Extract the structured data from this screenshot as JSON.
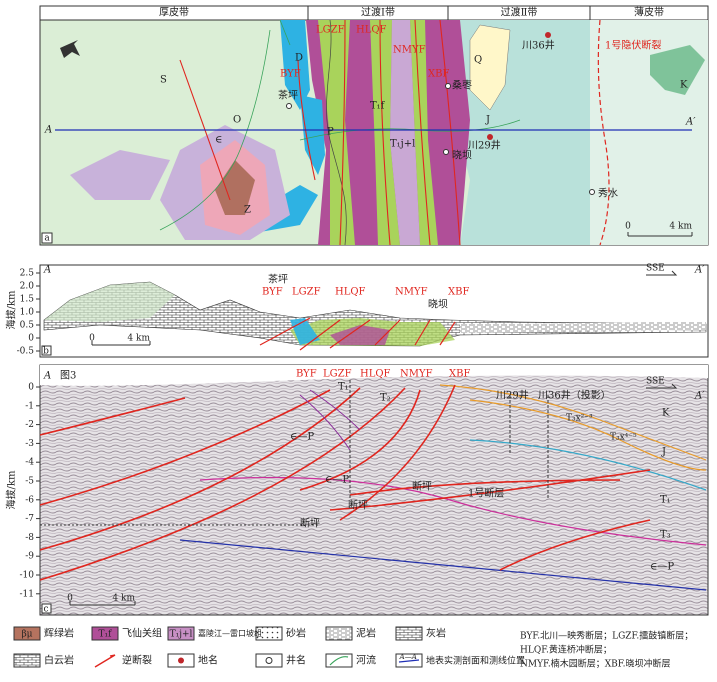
{
  "panel_a": {
    "zones": [
      "厚皮带",
      "过渡Ⅰ带",
      "过渡Ⅱ带",
      "薄皮带"
    ],
    "strata": [
      "S",
      "D",
      "P",
      "O",
      "∈",
      "Z",
      "Q",
      "J",
      "K",
      "T₁f",
      "T₁j+l"
    ],
    "faults": [
      "BYF",
      "LGZF",
      "HLQF",
      "NMYF",
      "XBF"
    ],
    "places": [
      "茶坪",
      "桑枣",
      "川36井",
      "川29井",
      "晓坝",
      "秀水"
    ],
    "hidden_fault": "1号隐伏断裂",
    "line_start": "A",
    "line_end": "A′",
    "scale": [
      "0",
      "4 km"
    ],
    "tag": "a"
  },
  "panel_b": {
    "axis_label": "海拔/km",
    "ticks": [
      "2.5",
      "2.0",
      "1.5",
      "1.0",
      "0.5",
      "0",
      "-0.5"
    ],
    "line_start": "A",
    "line_end": "A′",
    "direction": "SSE",
    "faults": [
      "BYF",
      "LGZF",
      "HLQF",
      "NMYF",
      "XBF"
    ],
    "places": [
      "茶坪",
      "晓坝"
    ],
    "scale": [
      "0",
      "4 km"
    ],
    "tag": "b"
  },
  "panel_c": {
    "axis_label": "海拔/km",
    "ticks": [
      "0",
      "-1",
      "-2",
      "-3",
      "-4",
      "-5",
      "-6",
      "-7",
      "-8",
      "-9",
      "-10",
      "-11"
    ],
    "line_start": "A",
    "line_end": "A′",
    "figure_ref": "图3",
    "direction": "SSE",
    "faults": [
      "BYF",
      "LGZF",
      "HLQF",
      "NMYF",
      "XBF"
    ],
    "wells": [
      "川29井",
      "川36井（投影）"
    ],
    "labels": [
      "∈—P",
      "∈—P",
      "断坪",
      "断坪",
      "断坪",
      "1号断层",
      "T₁",
      "T₂",
      "K",
      "J",
      "T₃x²⁻³",
      "T₃x⁴⁻⁵",
      "T₁",
      "T₃",
      "∈—P"
    ],
    "scale": [
      "0",
      "4 km"
    ],
    "tag": "c"
  },
  "legend": {
    "items": [
      {
        "symbol": "βμ",
        "label": "辉绿岩"
      },
      {
        "symbol": "T₁f",
        "label": "飞仙关组"
      },
      {
        "symbol": "T₁j+l",
        "label": "嘉陵江—雷口坡组"
      },
      {
        "label": "砂岩"
      },
      {
        "label": "泥岩"
      },
      {
        "label": "灰岩"
      },
      {
        "label": "白云岩"
      },
      {
        "label": "逆断裂"
      },
      {
        "label": "地名"
      },
      {
        "label": "井名"
      },
      {
        "label": "河流"
      },
      {
        "symbol": "A—A′",
        "label": "地表实测剖面和测线位置"
      }
    ],
    "notes": [
      "BYF.北川—映秀断层；LGZF.擂鼓镇断层；",
      "HLQF.黄连桥冲断层；",
      "NMYF.楠木园断层；XBF.晓坝冲断层"
    ]
  }
}
